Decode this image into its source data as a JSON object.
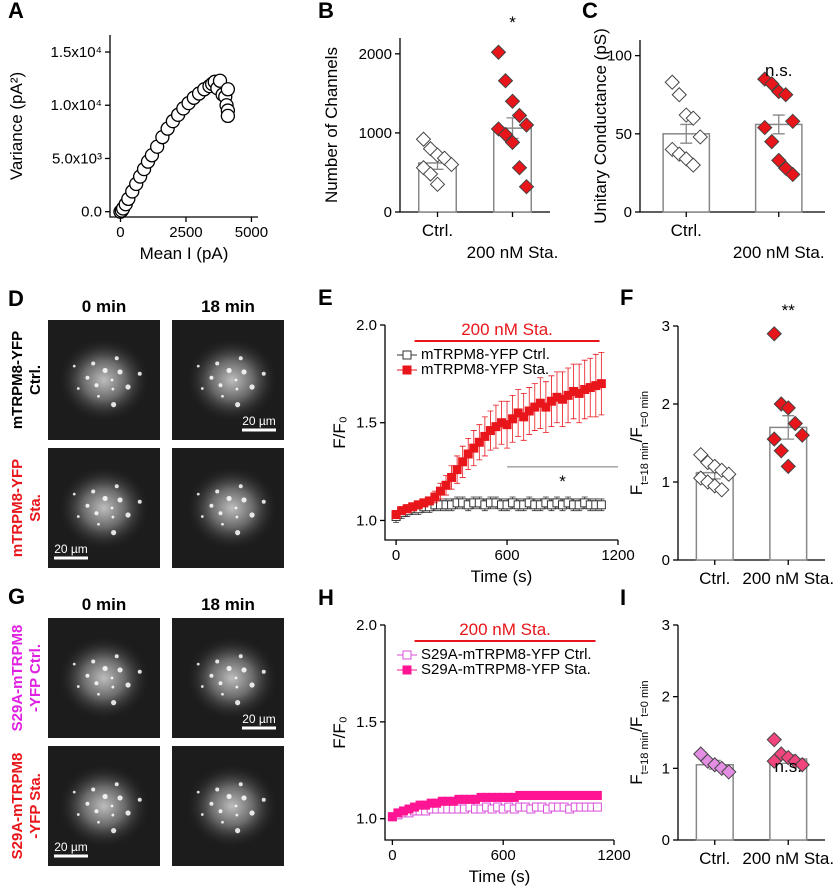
{
  "chart_data": [
    {
      "panel": "A",
      "type": "scatter",
      "xlabel": "Mean I (pA)",
      "ylabel": "Variance (pA²)",
      "xlim": [
        -400,
        5250
      ],
      "ylim": [
        -500,
        16600
      ],
      "xticks": [
        0,
        2500,
        5000
      ],
      "yticks": [
        {
          "value": 0,
          "label": "0.0"
        },
        {
          "value": 5000,
          "label": "5.0x10³"
        },
        {
          "value": 10000,
          "label": "1.0x10⁴"
        },
        {
          "value": 15000,
          "label": "1.5x10⁴"
        }
      ],
      "x": [
        0,
        50,
        100,
        200,
        300,
        450,
        600,
        750,
        900,
        1050,
        1200,
        1400,
        1600,
        1800,
        2000,
        2200,
        2400,
        2600,
        2800,
        3000,
        3200,
        3400,
        3500,
        3600,
        3700,
        3800,
        3900,
        4000,
        4050,
        4100,
        4100,
        4100
      ],
      "y": [
        0,
        100,
        300,
        700,
        1200,
        1900,
        2600,
        3300,
        4000,
        4700,
        5300,
        6100,
        7000,
        7800,
        8500,
        9100,
        9700,
        10200,
        10700,
        11100,
        11500,
        11800,
        12000,
        12200,
        11600,
        12300,
        11000,
        10800,
        10000,
        9500,
        9000,
        11500
      ]
    },
    {
      "panel": "B",
      "type": "bar",
      "ylabel": "Number of Channels",
      "ylim": [
        0,
        2200
      ],
      "yticks": [
        0,
        1000,
        2000
      ],
      "categories": [
        "Ctrl.",
        "200 nM Sta."
      ],
      "values": [
        620,
        1060
      ],
      "errors": [
        80,
        130
      ],
      "points": [
        [
          920,
          800,
          720,
          680,
          600,
          560,
          480,
          350
        ],
        [
          2020,
          1660,
          1400,
          1220,
          1100,
          1050,
          980,
          880,
          560,
          320
        ]
      ],
      "point_colors": [
        "#ffffff",
        "#e8161b"
      ],
      "annotation": "*"
    },
    {
      "panel": "C",
      "type": "bar",
      "ylabel": "Unitary Conductance  (pS)",
      "ylim": [
        0,
        110
      ],
      "yticks": [
        0,
        50,
        100
      ],
      "categories": [
        "Ctrl.",
        "200 nM Sta."
      ],
      "values": [
        50,
        56
      ],
      "errors": [
        6,
        6
      ],
      "points": [
        [
          83,
          75,
          62,
          60,
          48,
          40,
          37,
          34,
          30
        ],
        [
          85,
          82,
          77,
          75,
          58,
          54,
          45,
          33,
          28,
          24
        ]
      ],
      "point_colors": [
        "#ffffff",
        "#e8161b"
      ],
      "annotation": "n.s."
    },
    {
      "panel": "E",
      "type": "line",
      "xlabel": "Time (s)",
      "ylabel": "F/F₀",
      "xlim": [
        -60,
        1200
      ],
      "ylim": [
        0.9,
        2.0
      ],
      "xticks": [
        0,
        600,
        1200
      ],
      "yticks": [
        {
          "value": 1,
          "label": "1.0"
        },
        1.5,
        {
          "value": 2,
          "label": "2.0"
        }
      ],
      "x": [
        0,
        30,
        60,
        90,
        120,
        150,
        180,
        210,
        240,
        270,
        300,
        330,
        360,
        390,
        420,
        450,
        480,
        510,
        540,
        570,
        600,
        630,
        660,
        690,
        720,
        750,
        780,
        810,
        840,
        870,
        900,
        930,
        960,
        990,
        1020,
        1050,
        1080,
        1110
      ],
      "series": [
        {
          "name": "mTRPM8-YFP Ctrl.",
          "color": "#333333",
          "filled": false,
          "values": [
            1.02,
            1.04,
            1.05,
            1.06,
            1.06,
            1.07,
            1.07,
            1.08,
            1.08,
            1.08,
            1.08,
            1.09,
            1.09,
            1.08,
            1.09,
            1.09,
            1.08,
            1.09,
            1.09,
            1.08,
            1.08,
            1.09,
            1.08,
            1.08,
            1.09,
            1.08,
            1.08,
            1.09,
            1.08,
            1.09,
            1.08,
            1.09,
            1.08,
            1.08,
            1.09,
            1.08,
            1.08,
            1.08
          ],
          "errors": [
            0.03,
            0.03,
            0.03,
            0.03,
            0.03,
            0.03,
            0.03,
            0.03,
            0.03,
            0.03,
            0.03,
            0.03,
            0.03,
            0.03,
            0.03,
            0.03,
            0.03,
            0.03,
            0.03,
            0.03,
            0.03,
            0.03,
            0.03,
            0.03,
            0.03,
            0.03,
            0.03,
            0.03,
            0.03,
            0.03,
            0.03,
            0.03,
            0.03,
            0.03,
            0.03,
            0.03,
            0.03,
            0.03
          ]
        },
        {
          "name": "mTRPM8-YFP Sta.",
          "color": "#e8161b",
          "filled": true,
          "values": [
            1.03,
            1.05,
            1.06,
            1.07,
            1.08,
            1.09,
            1.1,
            1.12,
            1.15,
            1.18,
            1.22,
            1.26,
            1.3,
            1.34,
            1.37,
            1.4,
            1.43,
            1.46,
            1.48,
            1.5,
            1.49,
            1.52,
            1.55,
            1.53,
            1.56,
            1.58,
            1.6,
            1.58,
            1.61,
            1.63,
            1.62,
            1.64,
            1.66,
            1.65,
            1.67,
            1.68,
            1.69,
            1.7
          ],
          "errors": [
            0.02,
            0.02,
            0.02,
            0.02,
            0.02,
            0.02,
            0.02,
            0.03,
            0.04,
            0.05,
            0.06,
            0.07,
            0.08,
            0.08,
            0.09,
            0.09,
            0.1,
            0.1,
            0.11,
            0.11,
            0.12,
            0.12,
            0.12,
            0.12,
            0.12,
            0.12,
            0.13,
            0.13,
            0.13,
            0.13,
            0.14,
            0.14,
            0.14,
            0.15,
            0.15,
            0.15,
            0.16,
            0.16
          ]
        }
      ],
      "stimulus": {
        "label": "200 nM Sta.",
        "start": 100,
        "end": 1100
      },
      "significance": {
        "label": "*",
        "start": 600,
        "end": 1200
      }
    },
    {
      "panel": "F",
      "type": "bar",
      "ylabel": [
        "F",
        "t=18 min",
        "/F",
        "t=0 min"
      ],
      "ylim": [
        0,
        3
      ],
      "yticks": [
        0,
        1,
        2,
        3
      ],
      "categories": [
        "Ctrl.",
        "200 nM Sta."
      ],
      "values": [
        1.12,
        1.7
      ],
      "errors": [
        0.08,
        0.15
      ],
      "points": [
        [
          1.35,
          1.25,
          1.2,
          1.15,
          1.1,
          1.05,
          1.0,
          0.95,
          0.9
        ],
        [
          2.9,
          2.0,
          1.95,
          1.75,
          1.6,
          1.55,
          1.4,
          1.2
        ]
      ],
      "point_colors": [
        "#ffffff",
        "#e8161b"
      ],
      "annotation": "**"
    },
    {
      "panel": "H",
      "type": "line",
      "xlabel": "Time (s)",
      "ylabel": "F/F₀",
      "xlim": [
        -40,
        1200
      ],
      "ylim": [
        0.89,
        2.0
      ],
      "xticks": [
        0,
        600,
        1200
      ],
      "yticks": [
        {
          "value": 1,
          "label": "1.0"
        },
        1.5,
        {
          "value": 2,
          "label": "2.0"
        }
      ],
      "x": [
        0,
        30,
        60,
        90,
        120,
        150,
        180,
        210,
        240,
        270,
        300,
        330,
        360,
        390,
        420,
        450,
        480,
        510,
        540,
        570,
        600,
        630,
        660,
        690,
        720,
        750,
        780,
        810,
        840,
        870,
        900,
        930,
        960,
        990,
        1020,
        1050,
        1080,
        1110
      ],
      "series": [
        {
          "name": "S29A-mTRPM8-YFP Ctrl.",
          "color": "#d94fd9",
          "filled": false,
          "values": [
            1.01,
            1.02,
            1.03,
            1.03,
            1.04,
            1.04,
            1.04,
            1.05,
            1.05,
            1.05,
            1.05,
            1.05,
            1.05,
            1.05,
            1.06,
            1.05,
            1.05,
            1.06,
            1.05,
            1.06,
            1.05,
            1.06,
            1.05,
            1.06,
            1.06,
            1.05,
            1.06,
            1.06,
            1.05,
            1.06,
            1.06,
            1.06,
            1.05,
            1.06,
            1.06,
            1.06,
            1.06,
            1.06
          ],
          "errors": [
            0.02,
            0.02,
            0.02,
            0.02,
            0.02,
            0.02,
            0.02,
            0.02,
            0.02,
            0.02,
            0.02,
            0.02,
            0.02,
            0.02,
            0.02,
            0.02,
            0.02,
            0.02,
            0.02,
            0.02,
            0.02,
            0.02,
            0.02,
            0.02,
            0.02,
            0.02,
            0.02,
            0.02,
            0.02,
            0.02,
            0.02,
            0.02,
            0.02,
            0.02,
            0.02,
            0.02,
            0.02,
            0.02
          ]
        },
        {
          "name": "S29A-mTRPM8-YFP Sta.",
          "color": "#ff1493",
          "filled": true,
          "values": [
            1.01,
            1.03,
            1.04,
            1.05,
            1.06,
            1.07,
            1.07,
            1.08,
            1.08,
            1.09,
            1.09,
            1.09,
            1.1,
            1.1,
            1.1,
            1.1,
            1.11,
            1.11,
            1.11,
            1.11,
            1.11,
            1.11,
            1.11,
            1.12,
            1.12,
            1.12,
            1.12,
            1.12,
            1.12,
            1.12,
            1.12,
            1.12,
            1.12,
            1.12,
            1.12,
            1.12,
            1.12,
            1.12
          ],
          "errors": [
            0.02,
            0.02,
            0.02,
            0.02,
            0.02,
            0.02,
            0.02,
            0.02,
            0.02,
            0.02,
            0.02,
            0.02,
            0.02,
            0.02,
            0.02,
            0.02,
            0.02,
            0.02,
            0.02,
            0.02,
            0.02,
            0.02,
            0.02,
            0.02,
            0.02,
            0.02,
            0.02,
            0.02,
            0.02,
            0.02,
            0.02,
            0.02,
            0.02,
            0.02,
            0.02,
            0.02,
            0.02,
            0.02
          ]
        }
      ],
      "stimulus": {
        "label": "200 nM Sta.",
        "start": 120,
        "end": 1100
      }
    },
    {
      "panel": "I",
      "type": "bar",
      "ylabel": [
        "F",
        "t=18 min",
        "/F",
        "t=0 min"
      ],
      "ylim": [
        0,
        3
      ],
      "yticks": [
        0,
        1,
        2,
        3
      ],
      "categories": [
        "Ctrl.",
        "200 nM Sta."
      ],
      "values": [
        1.05,
        1.13
      ],
      "errors": [
        0.06,
        0.06
      ],
      "points": [
        [
          1.2,
          1.1,
          1.05,
          1.0,
          0.95
        ],
        [
          1.4,
          1.2,
          1.15,
          1.1,
          1.05,
          1.1
        ]
      ],
      "point_colors": [
        "#e38ee3",
        "#f0457d"
      ],
      "annotation": "n.s."
    }
  ],
  "image_panels": [
    {
      "panel": "D",
      "columns": [
        "0 min",
        "18 min"
      ],
      "scale_bar": "20 µm",
      "rows": [
        {
          "label": [
            "mTRPM8-YFP",
            "Ctrl."
          ],
          "color": "#000000"
        },
        {
          "label": [
            "mTRPM8-YFP",
            "Sta."
          ],
          "color": "#e8161b"
        }
      ]
    },
    {
      "panel": "G",
      "columns": [
        "0 min",
        "18 min"
      ],
      "scale_bar": "20 µm",
      "rows": [
        {
          "label": [
            "S29A-mTRPM8",
            "-YFP Ctrl."
          ],
          "color": "#e020e0"
        },
        {
          "label": [
            "S29A-mTRPM8",
            "-YFP  Sta."
          ],
          "color": "#e8161b"
        }
      ]
    }
  ]
}
